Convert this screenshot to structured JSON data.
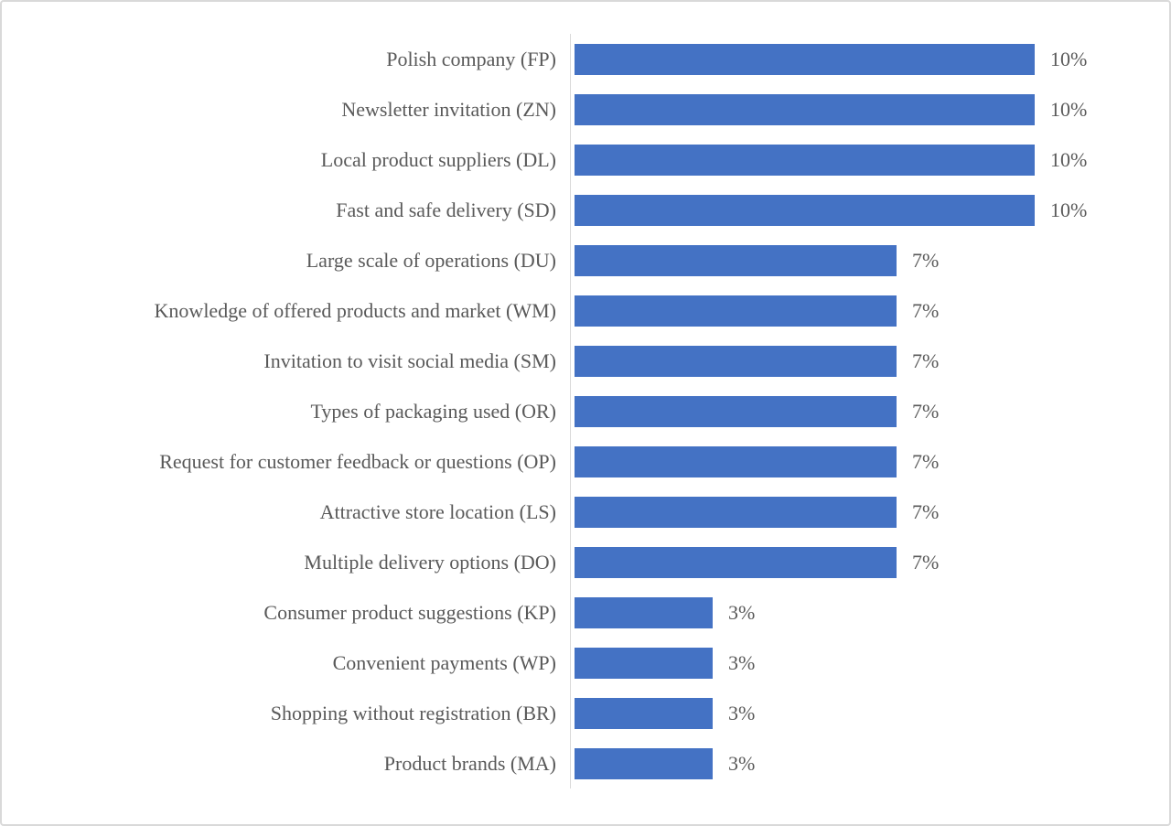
{
  "figure": {
    "background_color": "#FFFFFF",
    "border_color": "#D9D9D9"
  },
  "chart_data": {
    "type": "bar",
    "orientation": "horizontal",
    "title": "",
    "xlabel": "",
    "ylabel": "",
    "xlim": [
      0,
      10
    ],
    "grid": false,
    "legend": "none",
    "value_label_position": "outside-end",
    "bar_color": "#4472C4",
    "label_color": "#595959",
    "axis_line_color": "#D9D9D9",
    "categories": [
      "Polish company (FP)",
      "Newsletter invitation (ZN)",
      "Local product suppliers (DL)",
      "Fast and safe delivery (SD)",
      "Large scale of operations (DU)",
      "Knowledge of offered products and market (WM)",
      "Invitation to visit social media (SM)",
      "Types of packaging used (OR)",
      "Request for customer feedback or questions (OP)",
      "Attractive store location (LS)",
      "Multiple delivery options (DO)",
      "Consumer product suggestions (KP)",
      "Convenient payments (WP)",
      "Shopping without registration (BR)",
      "Product brands (MA)"
    ],
    "values": [
      10,
      10,
      10,
      10,
      7,
      7,
      7,
      7,
      7,
      7,
      7,
      3,
      3,
      3,
      3
    ],
    "value_labels": [
      "10%",
      "10%",
      "10%",
      "10%",
      "7%",
      "7%",
      "7%",
      "7%",
      "7%",
      "7%",
      "7%",
      "3%",
      "3%",
      "3%",
      "3%"
    ]
  }
}
